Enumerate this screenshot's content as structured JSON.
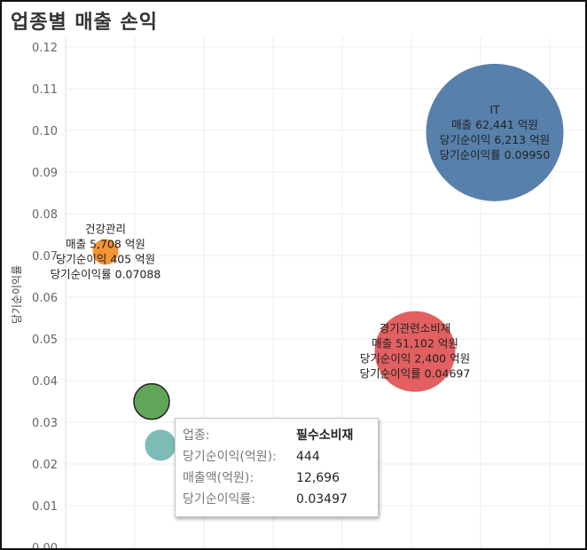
{
  "title": "업종별 매출 손익",
  "chart_data": {
    "type": "scatter",
    "ylabel": "당기순이익률",
    "ylim": [
      0,
      0.12
    ],
    "yticks": [
      "0.00",
      "0.01",
      "0.02",
      "0.03",
      "0.04",
      "0.05",
      "0.06",
      "0.07",
      "0.08",
      "0.09",
      "0.10",
      "0.11",
      "0.12"
    ],
    "grid": true,
    "points": [
      {
        "category": "IT",
        "revenue": 62441,
        "net_income": 6213,
        "margin": 0.0995,
        "color": "#4e79a7",
        "label": [
          "IT",
          "매출 62,441 억원",
          "당기순이익 6,213 억원",
          "당기순이익률 0.09950"
        ]
      },
      {
        "category": "경기관련소비재",
        "revenue": 51102,
        "net_income": 2400,
        "margin": 0.04697,
        "color": "#e15759",
        "label": [
          "경기관련소비재",
          "매출 51,102 억원",
          "당기순이익 2,400 억원",
          "당기순이익률 0.04697"
        ]
      },
      {
        "category": "건강관리",
        "revenue": 5708,
        "net_income": 405,
        "margin": 0.07088,
        "color": "#f28e2b",
        "label": [
          "건강관리",
          "매출 5,708 억원",
          "당기순이익 405 억원",
          "당기순이익률 0.07088"
        ]
      },
      {
        "category": "필수소비재",
        "revenue": 12696,
        "net_income": 444,
        "margin": 0.03497,
        "color": "#59a14f",
        "label": []
      },
      {
        "category": "",
        "margin": 0.0245,
        "color": "#76b7b2",
        "label": []
      }
    ]
  },
  "tooltip": {
    "rows": [
      {
        "key": "업종:",
        "value": "필수소비재",
        "bold": true
      },
      {
        "key": "당기순이익(억원):",
        "value": "444"
      },
      {
        "key": "매출액(억원):",
        "value": "12,696"
      },
      {
        "key": "당기순이익률:",
        "value": "0.03497"
      }
    ]
  }
}
